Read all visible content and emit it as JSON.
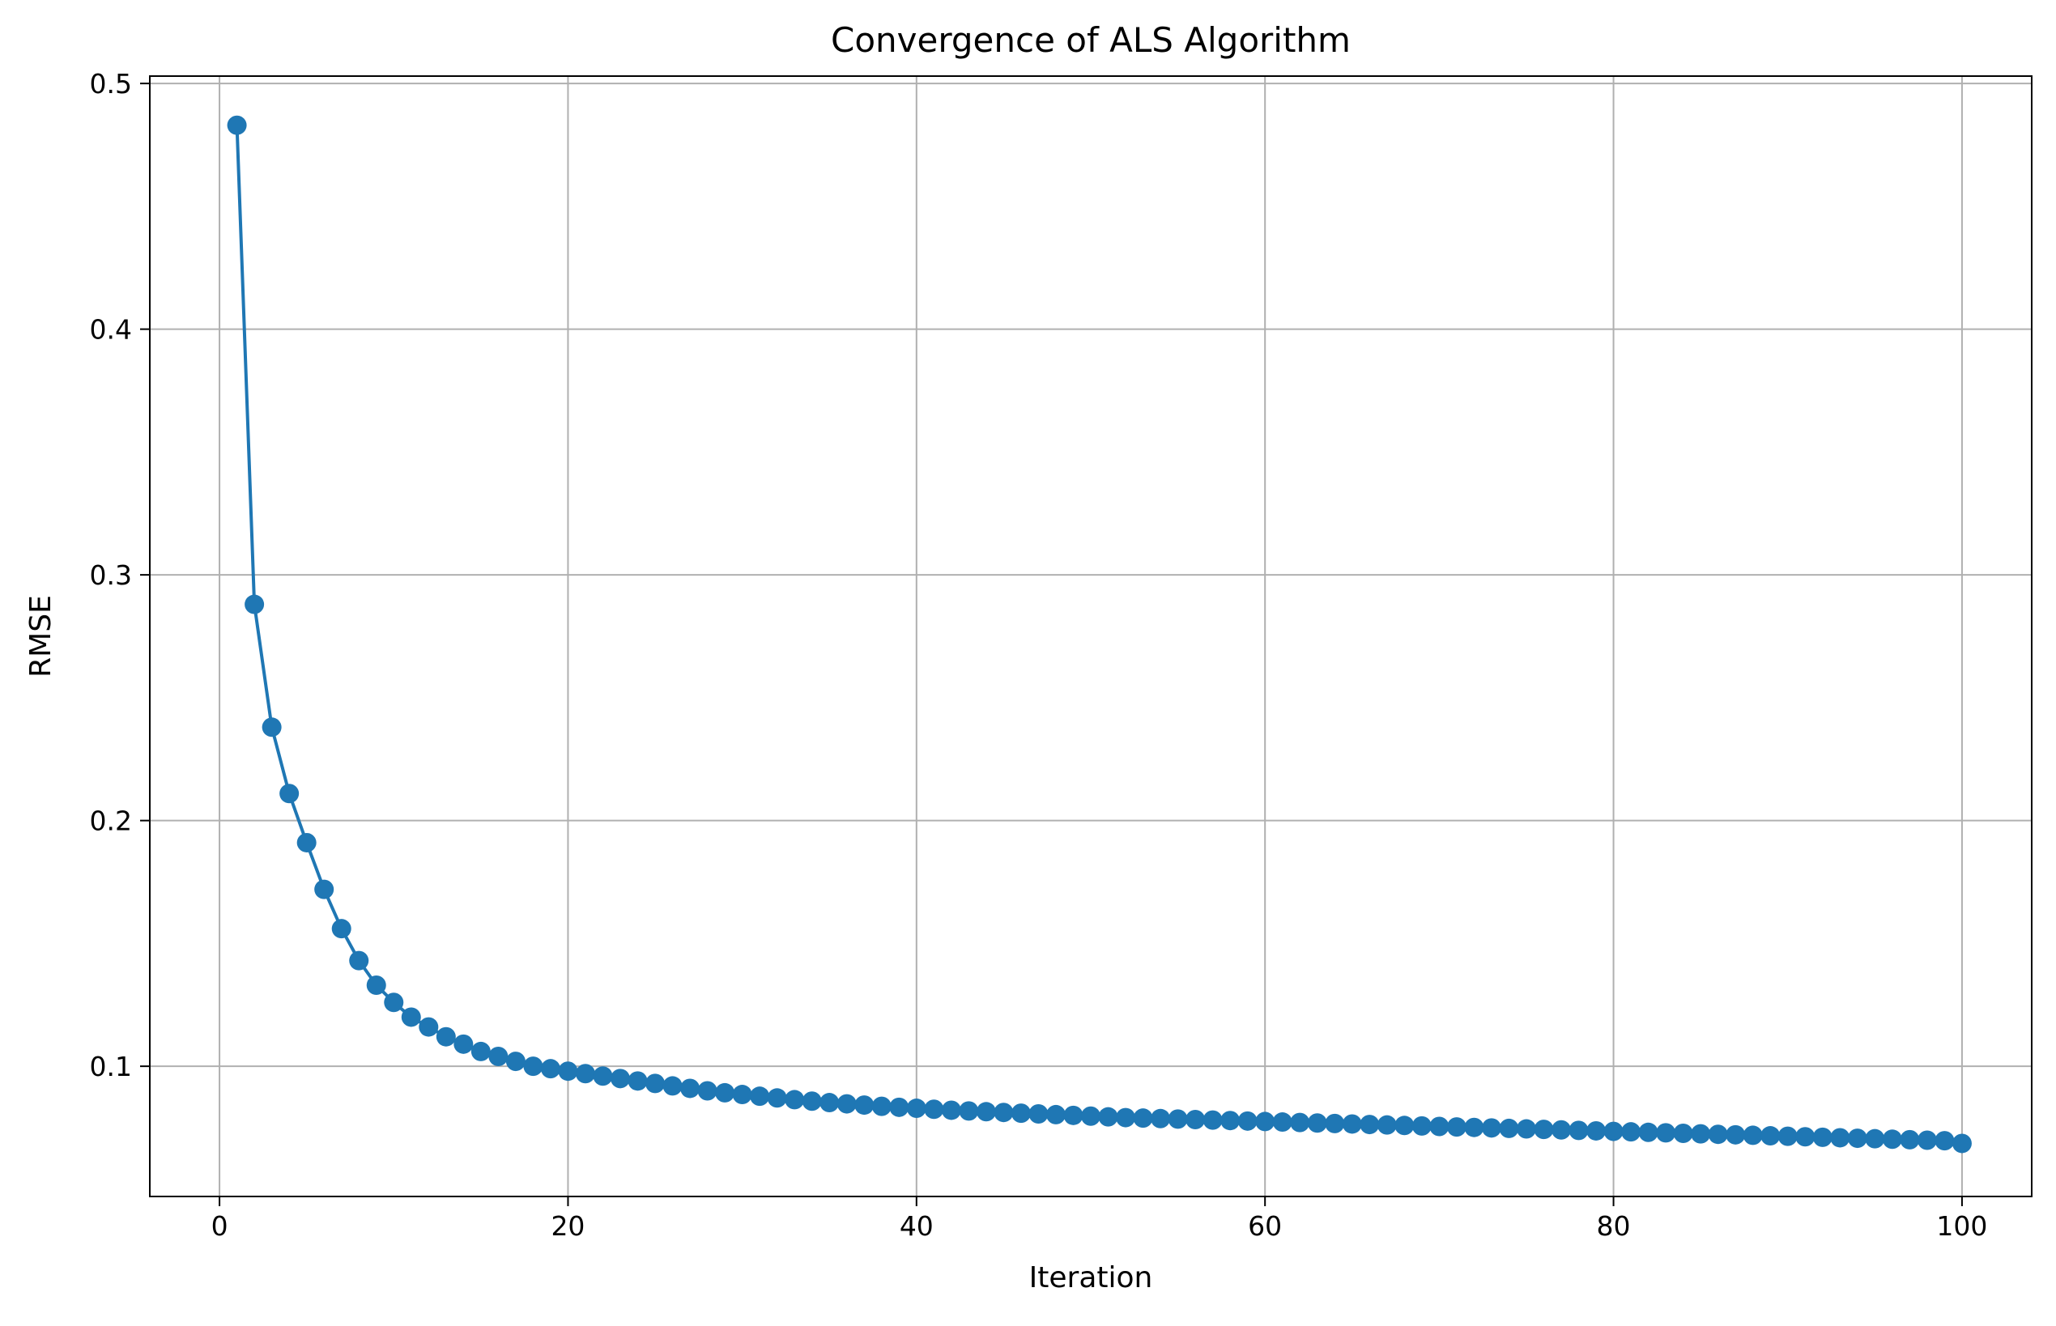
{
  "chart_data": {
    "type": "line",
    "title": "Convergence of ALS Algorithm",
    "xlabel": "Iteration",
    "ylabel": "RMSE",
    "xlim": [
      -4,
      104
    ],
    "ylim": [
      0.047,
      0.503
    ],
    "x_ticks": [
      0,
      20,
      40,
      60,
      80,
      100
    ],
    "y_ticks": [
      0.1,
      0.2,
      0.3,
      0.4,
      0.5
    ],
    "grid": true,
    "legend": "none",
    "marker": "circle",
    "color": "#1f77b4",
    "series": [
      {
        "x": [
          1,
          2,
          3,
          4,
          5,
          6,
          7,
          8,
          9,
          10,
          11,
          12,
          13,
          14,
          15,
          16,
          17,
          18,
          19,
          20,
          21,
          22,
          23,
          24,
          25,
          26,
          27,
          28,
          29,
          30,
          31,
          32,
          33,
          34,
          35,
          36,
          37,
          38,
          39,
          40,
          41,
          42,
          43,
          44,
          45,
          46,
          47,
          48,
          49,
          50,
          51,
          52,
          53,
          54,
          55,
          56,
          57,
          58,
          59,
          60,
          61,
          62,
          63,
          64,
          65,
          66,
          67,
          68,
          69,
          70,
          71,
          72,
          73,
          74,
          75,
          76,
          77,
          78,
          79,
          80,
          81,
          82,
          83,
          84,
          85,
          86,
          87,
          88,
          89,
          90,
          91,
          92,
          93,
          94,
          95,
          96,
          97,
          98,
          99,
          100
        ],
        "values": [
          0.483,
          0.288,
          0.238,
          0.211,
          0.191,
          0.172,
          0.156,
          0.143,
          0.133,
          0.126,
          0.12,
          0.116,
          0.112,
          0.109,
          0.106,
          0.104,
          0.102,
          0.1,
          0.099,
          0.098,
          0.097,
          0.096,
          0.095,
          0.094,
          0.093,
          0.092,
          0.091,
          0.09,
          0.0892,
          0.0885,
          0.0878,
          0.0871,
          0.0864,
          0.0858,
          0.0852,
          0.0847,
          0.0842,
          0.0837,
          0.0833,
          0.0829,
          0.0825,
          0.0821,
          0.0818,
          0.0815,
          0.0812,
          0.0809,
          0.0806,
          0.0803,
          0.08,
          0.0797,
          0.0794,
          0.0791,
          0.0789,
          0.0787,
          0.0785,
          0.0783,
          0.0781,
          0.0779,
          0.0777,
          0.0775,
          0.0773,
          0.0771,
          0.0769,
          0.0767,
          0.0765,
          0.0763,
          0.0761,
          0.0759,
          0.0757,
          0.0755,
          0.0753,
          0.0751,
          0.0749,
          0.0747,
          0.0745,
          0.0743,
          0.0741,
          0.0739,
          0.0737,
          0.0735,
          0.0733,
          0.0731,
          0.0729,
          0.0727,
          0.0725,
          0.0723,
          0.0721,
          0.0719,
          0.0717,
          0.0715,
          0.0713,
          0.0711,
          0.0709,
          0.0707,
          0.0705,
          0.0703,
          0.0701,
          0.0699,
          0.0697,
          0.0686
        ]
      }
    ]
  }
}
